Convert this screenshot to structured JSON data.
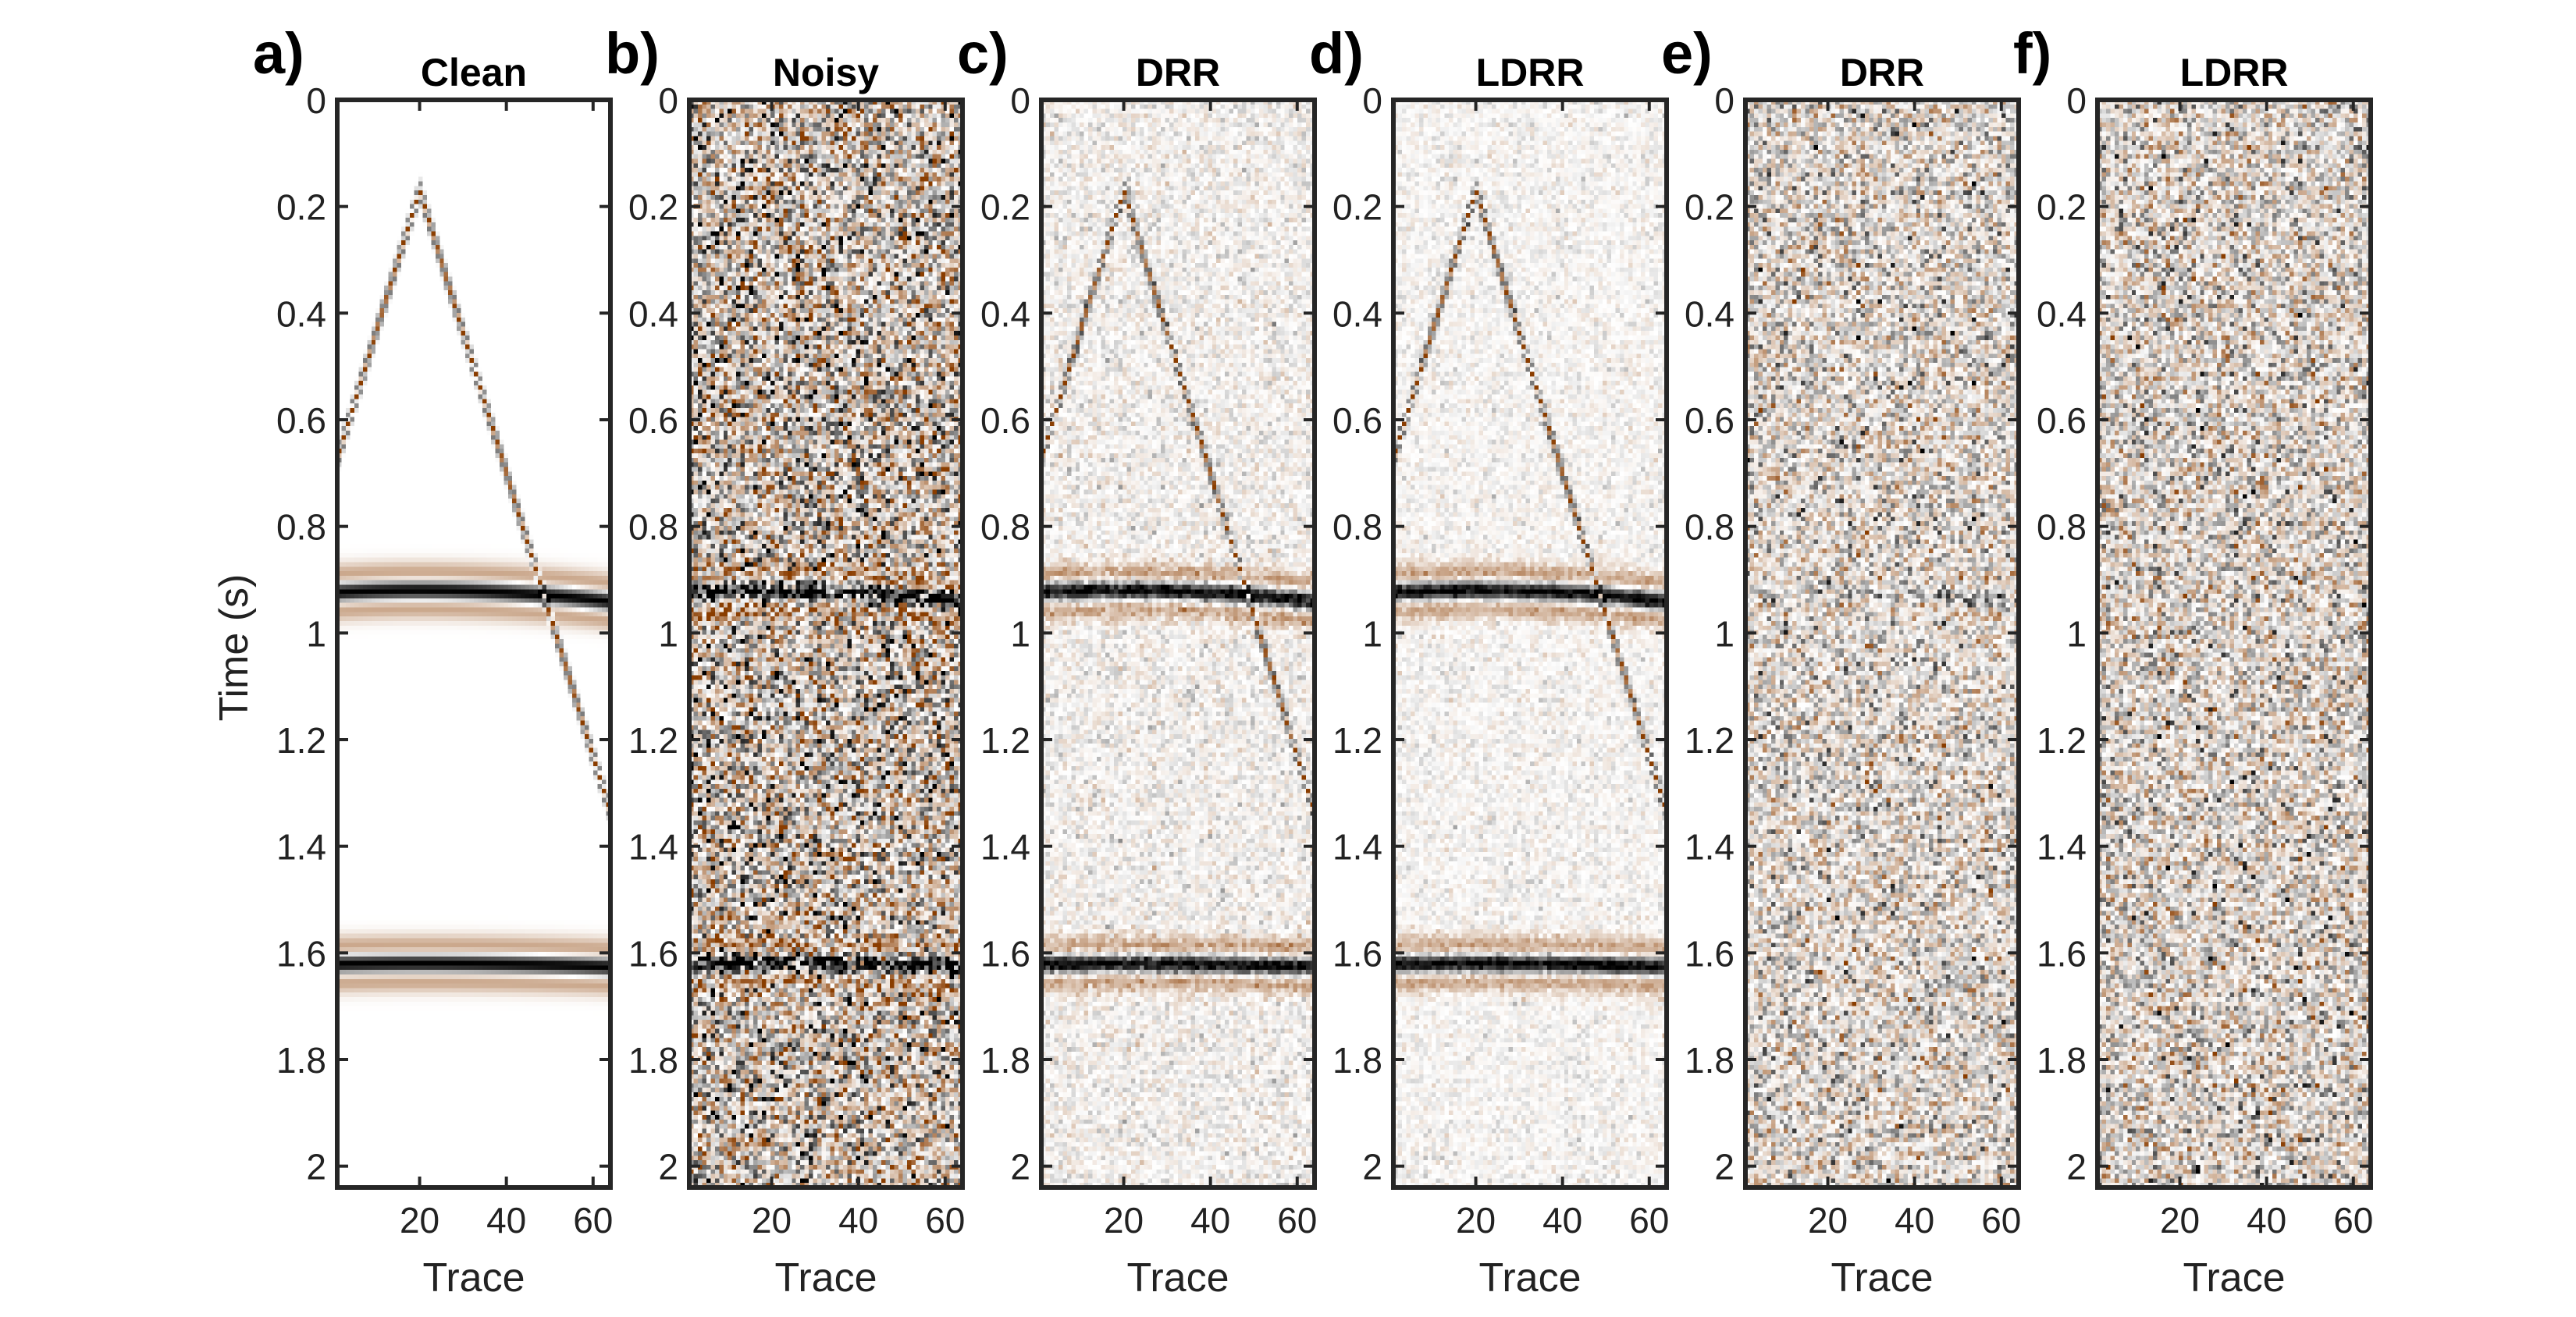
{
  "figure": {
    "ylabel": "Time (s)",
    "xlabel": "Trace",
    "colors": {
      "positive": "#8a3d00",
      "negative": "#000000",
      "frame": "#262626",
      "tick_text": "#222222"
    }
  },
  "chart_data": [
    {
      "type": "heatmap",
      "panel": "a)",
      "title": "Clean",
      "xlabel": "Trace",
      "ylabel": "Time (s)",
      "xlim": [
        1,
        64
      ],
      "ylim": [
        0,
        2.04
      ],
      "y_reversed": true,
      "xticks": [
        20,
        40,
        60
      ],
      "yticks": [
        0,
        0.2,
        0.4,
        0.6,
        0.8,
        1,
        1.2,
        1.4,
        1.6,
        1.8,
        2
      ],
      "noise": 0,
      "events": [
        "linear_apex_trace20_t0.17",
        "hyperbola_apex_t0.92",
        "hyperbola_apex_t1.62"
      ]
    },
    {
      "type": "heatmap",
      "panel": "b)",
      "title": "Noisy",
      "xlabel": "Trace",
      "ylabel": "",
      "xlim": [
        1,
        64
      ],
      "ylim": [
        0,
        2.04
      ],
      "y_reversed": true,
      "xticks": [
        20,
        40,
        60
      ],
      "yticks": [
        0,
        0.2,
        0.4,
        0.6,
        0.8,
        1,
        1.2,
        1.4,
        1.6,
        1.8,
        2
      ],
      "noise": 0.9,
      "events": [
        "linear_apex_trace20_t0.17",
        "hyperbola_apex_t0.92",
        "hyperbola_apex_t1.62"
      ]
    },
    {
      "type": "heatmap",
      "panel": "c)",
      "title": "DRR",
      "xlabel": "Trace",
      "ylabel": "",
      "xlim": [
        1,
        64
      ],
      "ylim": [
        0,
        2.04
      ],
      "y_reversed": true,
      "xticks": [
        20,
        40,
        60
      ],
      "yticks": [
        0,
        0.2,
        0.4,
        0.6,
        0.8,
        1,
        1.2,
        1.4,
        1.6,
        1.8,
        2
      ],
      "noise": 0.22,
      "events": [
        "linear_apex_trace20_t0.17",
        "hyperbola_apex_t0.92",
        "hyperbola_apex_t1.62"
      ]
    },
    {
      "type": "heatmap",
      "panel": "d)",
      "title": "LDRR",
      "xlabel": "Trace",
      "ylabel": "",
      "xlim": [
        1,
        64
      ],
      "ylim": [
        0,
        2.04
      ],
      "y_reversed": true,
      "xticks": [
        20,
        40,
        60
      ],
      "yticks": [
        0,
        0.2,
        0.4,
        0.6,
        0.8,
        1,
        1.2,
        1.4,
        1.6,
        1.8,
        2
      ],
      "noise": 0.16,
      "events": [
        "linear_apex_trace20_t0.17",
        "hyperbola_apex_t0.92",
        "hyperbola_apex_t1.62"
      ]
    },
    {
      "type": "heatmap",
      "panel": "e)",
      "title": "DRR",
      "xlabel": "Trace",
      "ylabel": "",
      "xlim": [
        1,
        64
      ],
      "ylim": [
        0,
        2.04
      ],
      "y_reversed": true,
      "xticks": [
        20,
        40,
        60
      ],
      "yticks": [
        0,
        0.2,
        0.4,
        0.6,
        0.8,
        1,
        1.2,
        1.4,
        1.6,
        1.8,
        2
      ],
      "noise": 0.55,
      "events": [
        "linear_apex_trace20_t0.17_faint",
        "hyperbola_apex_t0.92_faint"
      ]
    },
    {
      "type": "heatmap",
      "panel": "f)",
      "title": "LDRR",
      "xlabel": "Trace",
      "ylabel": "",
      "xlim": [
        1,
        64
      ],
      "ylim": [
        0,
        2.04
      ],
      "y_reversed": true,
      "xticks": [
        20,
        40,
        60
      ],
      "yticks": [
        0,
        0.2,
        0.4,
        0.6,
        0.8,
        1,
        1.2,
        1.4,
        1.6,
        1.8,
        2
      ],
      "noise": 0.6,
      "events": [
        "apex_trace20_t0.17_faint"
      ]
    }
  ]
}
